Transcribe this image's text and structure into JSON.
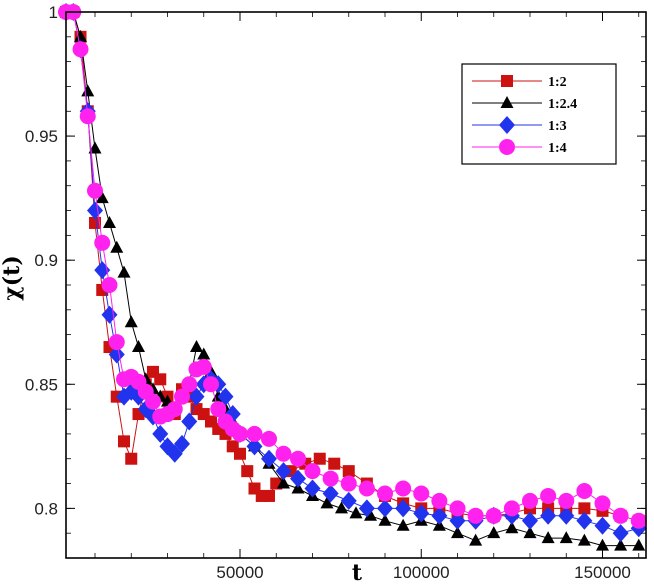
{
  "chart_data": {
    "type": "line",
    "title": "",
    "xlabel": "t",
    "ylabel": "χ(t)",
    "xlim": [
      2000,
      162000
    ],
    "ylim": [
      0.78,
      1.0
    ],
    "xticks": [
      50000,
      100000,
      150000
    ],
    "xtick_labels": [
      "50000",
      "100000",
      "150000"
    ],
    "yticks": [
      0.8,
      0.85,
      0.9,
      0.95,
      1.0
    ],
    "ytick_labels": [
      "0.8",
      "0.85",
      "0.9",
      "0.95",
      "1"
    ],
    "legend_position": "top-right",
    "series": [
      {
        "name": "1:2",
        "color": "#cc1111",
        "marker": "square",
        "points": [
          [
            2000,
            1.0
          ],
          [
            4000,
            1.0
          ],
          [
            6000,
            0.99
          ],
          [
            8000,
            0.96
          ],
          [
            10000,
            0.915
          ],
          [
            12000,
            0.888
          ],
          [
            14000,
            0.865
          ],
          [
            16000,
            0.845
          ],
          [
            18000,
            0.827
          ],
          [
            20000,
            0.82
          ],
          [
            22000,
            0.838
          ],
          [
            24000,
            0.85
          ],
          [
            26000,
            0.855
          ],
          [
            28000,
            0.852
          ],
          [
            30000,
            0.845
          ],
          [
            32000,
            0.838
          ],
          [
            34000,
            0.848
          ],
          [
            36000,
            0.845
          ],
          [
            38000,
            0.84
          ],
          [
            40000,
            0.838
          ],
          [
            42000,
            0.835
          ],
          [
            44000,
            0.832
          ],
          [
            46000,
            0.83
          ],
          [
            48000,
            0.825
          ],
          [
            50000,
            0.822
          ],
          [
            52000,
            0.815
          ],
          [
            54000,
            0.808
          ],
          [
            56000,
            0.805
          ],
          [
            58000,
            0.805
          ],
          [
            60000,
            0.81
          ],
          [
            64000,
            0.815
          ],
          [
            68000,
            0.818
          ],
          [
            72000,
            0.82
          ],
          [
            76000,
            0.818
          ],
          [
            80000,
            0.815
          ],
          [
            85000,
            0.81
          ],
          [
            90000,
            0.805
          ],
          [
            95000,
            0.802
          ],
          [
            100000,
            0.8
          ],
          [
            105000,
            0.8
          ],
          [
            110000,
            0.798
          ],
          [
            115000,
            0.797
          ],
          [
            120000,
            0.797
          ],
          [
            125000,
            0.798
          ],
          [
            130000,
            0.8
          ],
          [
            135000,
            0.8
          ],
          [
            140000,
            0.8
          ],
          [
            145000,
            0.8
          ],
          [
            150000,
            0.799
          ],
          [
            155000,
            0.797
          ],
          [
            160000,
            0.795
          ]
        ]
      },
      {
        "name": "1:2.4",
        "color": "#000000",
        "marker": "triangle",
        "points": [
          [
            2000,
            1.0
          ],
          [
            4000,
            1.0
          ],
          [
            6000,
            0.99
          ],
          [
            8000,
            0.968
          ],
          [
            10000,
            0.945
          ],
          [
            12000,
            0.925
          ],
          [
            14000,
            0.915
          ],
          [
            16000,
            0.905
          ],
          [
            18000,
            0.895
          ],
          [
            20000,
            0.875
          ],
          [
            22000,
            0.865
          ],
          [
            24000,
            0.852
          ],
          [
            26000,
            0.848
          ],
          [
            28000,
            0.845
          ],
          [
            30000,
            0.843
          ],
          [
            32000,
            0.84
          ],
          [
            34000,
            0.845
          ],
          [
            36000,
            0.85
          ],
          [
            38000,
            0.865
          ],
          [
            40000,
            0.862
          ],
          [
            42000,
            0.855
          ],
          [
            44000,
            0.845
          ],
          [
            46000,
            0.84
          ],
          [
            48000,
            0.835
          ],
          [
            50000,
            0.83
          ],
          [
            54000,
            0.825
          ],
          [
            58000,
            0.818
          ],
          [
            62000,
            0.81
          ],
          [
            66000,
            0.808
          ],
          [
            70000,
            0.805
          ],
          [
            74000,
            0.802
          ],
          [
            78000,
            0.8
          ],
          [
            82000,
            0.798
          ],
          [
            86000,
            0.797
          ],
          [
            90000,
            0.795
          ],
          [
            95000,
            0.793
          ],
          [
            100000,
            0.795
          ],
          [
            105000,
            0.793
          ],
          [
            110000,
            0.79
          ],
          [
            115000,
            0.787
          ],
          [
            120000,
            0.79
          ],
          [
            125000,
            0.792
          ],
          [
            130000,
            0.79
          ],
          [
            135000,
            0.788
          ],
          [
            140000,
            0.788
          ],
          [
            145000,
            0.787
          ],
          [
            150000,
            0.785
          ],
          [
            155000,
            0.785
          ],
          [
            160000,
            0.785
          ]
        ]
      },
      {
        "name": "1:3",
        "color": "#2233ee",
        "marker": "diamond",
        "points": [
          [
            2000,
            1.0
          ],
          [
            4000,
            1.0
          ],
          [
            6000,
            0.985
          ],
          [
            8000,
            0.96
          ],
          [
            10000,
            0.92
          ],
          [
            12000,
            0.896
          ],
          [
            14000,
            0.878
          ],
          [
            16000,
            0.862
          ],
          [
            18000,
            0.845
          ],
          [
            20000,
            0.847
          ],
          [
            22000,
            0.845
          ],
          [
            24000,
            0.84
          ],
          [
            26000,
            0.837
          ],
          [
            28000,
            0.83
          ],
          [
            30000,
            0.825
          ],
          [
            32000,
            0.822
          ],
          [
            34000,
            0.826
          ],
          [
            36000,
            0.835
          ],
          [
            38000,
            0.845
          ],
          [
            40000,
            0.85
          ],
          [
            42000,
            0.852
          ],
          [
            44000,
            0.85
          ],
          [
            46000,
            0.845
          ],
          [
            48000,
            0.838
          ],
          [
            50000,
            0.83
          ],
          [
            54000,
            0.825
          ],
          [
            58000,
            0.82
          ],
          [
            62000,
            0.815
          ],
          [
            66000,
            0.812
          ],
          [
            70000,
            0.808
          ],
          [
            75000,
            0.806
          ],
          [
            80000,
            0.803
          ],
          [
            85000,
            0.8
          ],
          [
            90000,
            0.8
          ],
          [
            95000,
            0.8
          ],
          [
            100000,
            0.798
          ],
          [
            105000,
            0.797
          ],
          [
            110000,
            0.795
          ],
          [
            115000,
            0.795
          ],
          [
            120000,
            0.797
          ],
          [
            125000,
            0.797
          ],
          [
            130000,
            0.795
          ],
          [
            135000,
            0.797
          ],
          [
            140000,
            0.797
          ],
          [
            145000,
            0.795
          ],
          [
            150000,
            0.793
          ],
          [
            155000,
            0.79
          ],
          [
            160000,
            0.792
          ]
        ]
      },
      {
        "name": "1:4",
        "color": "#ff22ee",
        "marker": "circle",
        "points": [
          [
            2000,
            1.0
          ],
          [
            4000,
            1.0
          ],
          [
            6000,
            0.985
          ],
          [
            8000,
            0.958
          ],
          [
            10000,
            0.928
          ],
          [
            12000,
            0.907
          ],
          [
            14000,
            0.89
          ],
          [
            16000,
            0.867
          ],
          [
            18000,
            0.852
          ],
          [
            20000,
            0.853
          ],
          [
            22000,
            0.851
          ],
          [
            24000,
            0.847
          ],
          [
            26000,
            0.843
          ],
          [
            28000,
            0.837
          ],
          [
            30000,
            0.838
          ],
          [
            32000,
            0.84
          ],
          [
            34000,
            0.845
          ],
          [
            36000,
            0.85
          ],
          [
            38000,
            0.856
          ],
          [
            40000,
            0.857
          ],
          [
            42000,
            0.85
          ],
          [
            44000,
            0.84
          ],
          [
            46000,
            0.835
          ],
          [
            48000,
            0.832
          ],
          [
            50000,
            0.83
          ],
          [
            54000,
            0.83
          ],
          [
            58000,
            0.828
          ],
          [
            62000,
            0.822
          ],
          [
            66000,
            0.82
          ],
          [
            70000,
            0.815
          ],
          [
            75000,
            0.812
          ],
          [
            80000,
            0.81
          ],
          [
            85000,
            0.808
          ],
          [
            90000,
            0.806
          ],
          [
            95000,
            0.808
          ],
          [
            100000,
            0.806
          ],
          [
            105000,
            0.803
          ],
          [
            110000,
            0.8
          ],
          [
            115000,
            0.797
          ],
          [
            120000,
            0.797
          ],
          [
            125000,
            0.8
          ],
          [
            130000,
            0.803
          ],
          [
            135000,
            0.805
          ],
          [
            140000,
            0.803
          ],
          [
            145000,
            0.807
          ],
          [
            150000,
            0.802
          ],
          [
            155000,
            0.797
          ],
          [
            160000,
            0.795
          ]
        ]
      }
    ]
  }
}
